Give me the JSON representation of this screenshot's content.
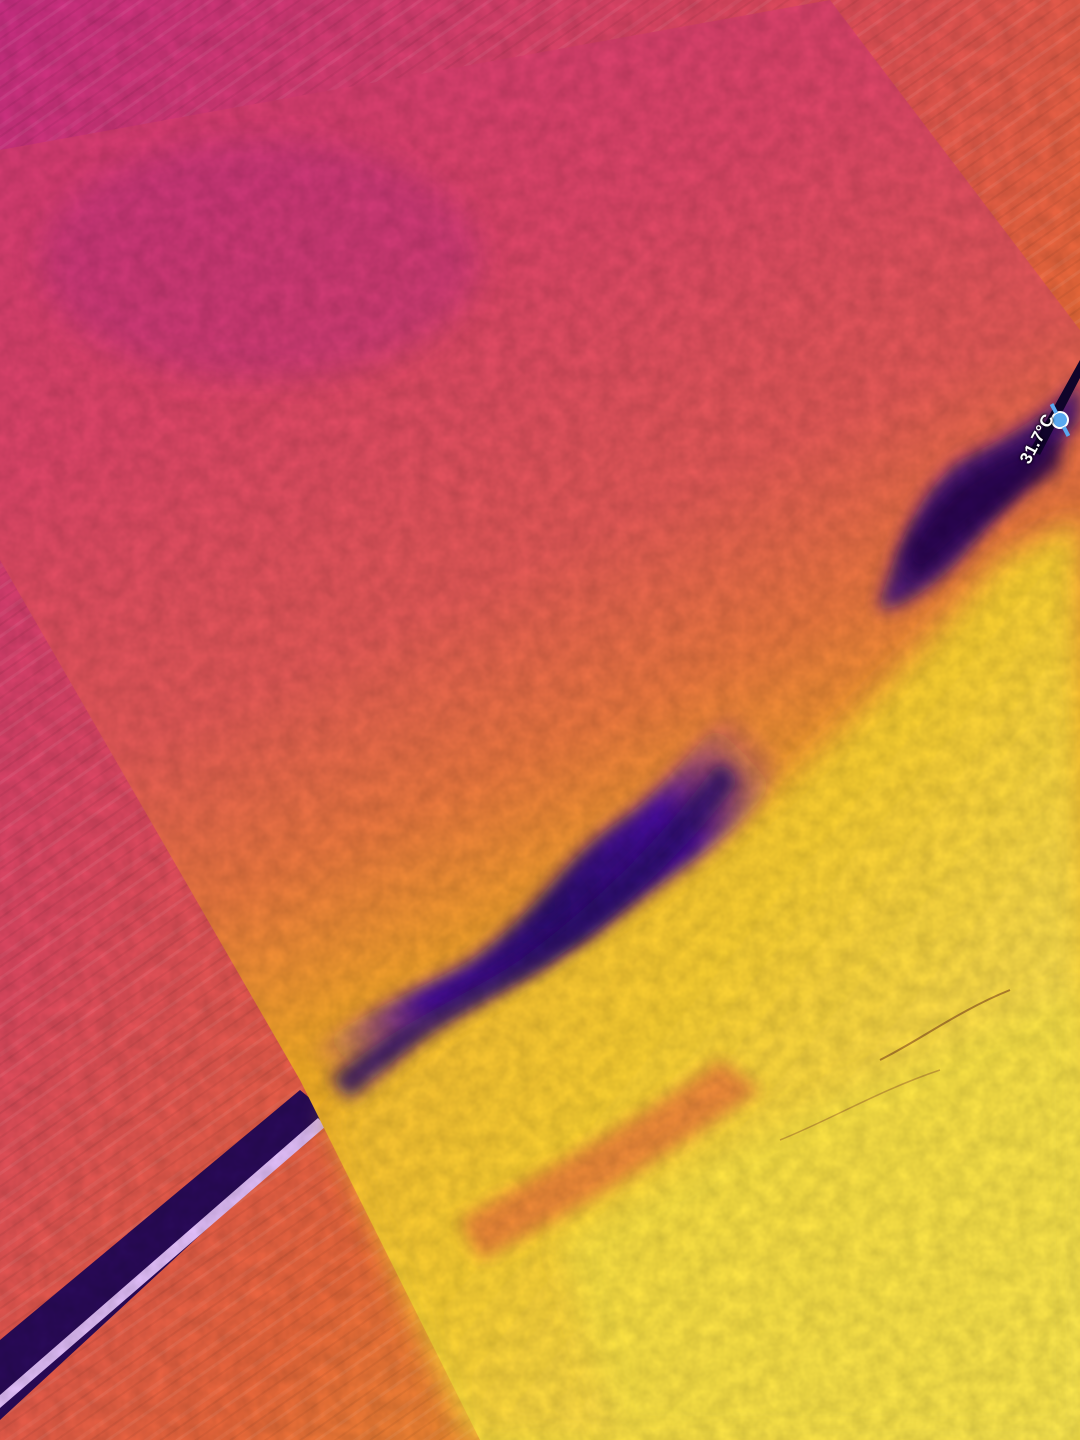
{
  "overlay": {
    "temperature": "31.7°C"
  },
  "icons": {
    "probe": "thermometer-probe-icon"
  },
  "colors": {
    "magenta": "#d4357a",
    "pink": "#e24a66",
    "orange": "#f57a2c",
    "amber": "#fbb424",
    "yellow": "#ffe33a",
    "pale_yellow": "#fff48a",
    "cold_purple": "#5a10a0",
    "cold_deep": "#2a0a6a",
    "probe_blue": "#5aa8f0"
  }
}
